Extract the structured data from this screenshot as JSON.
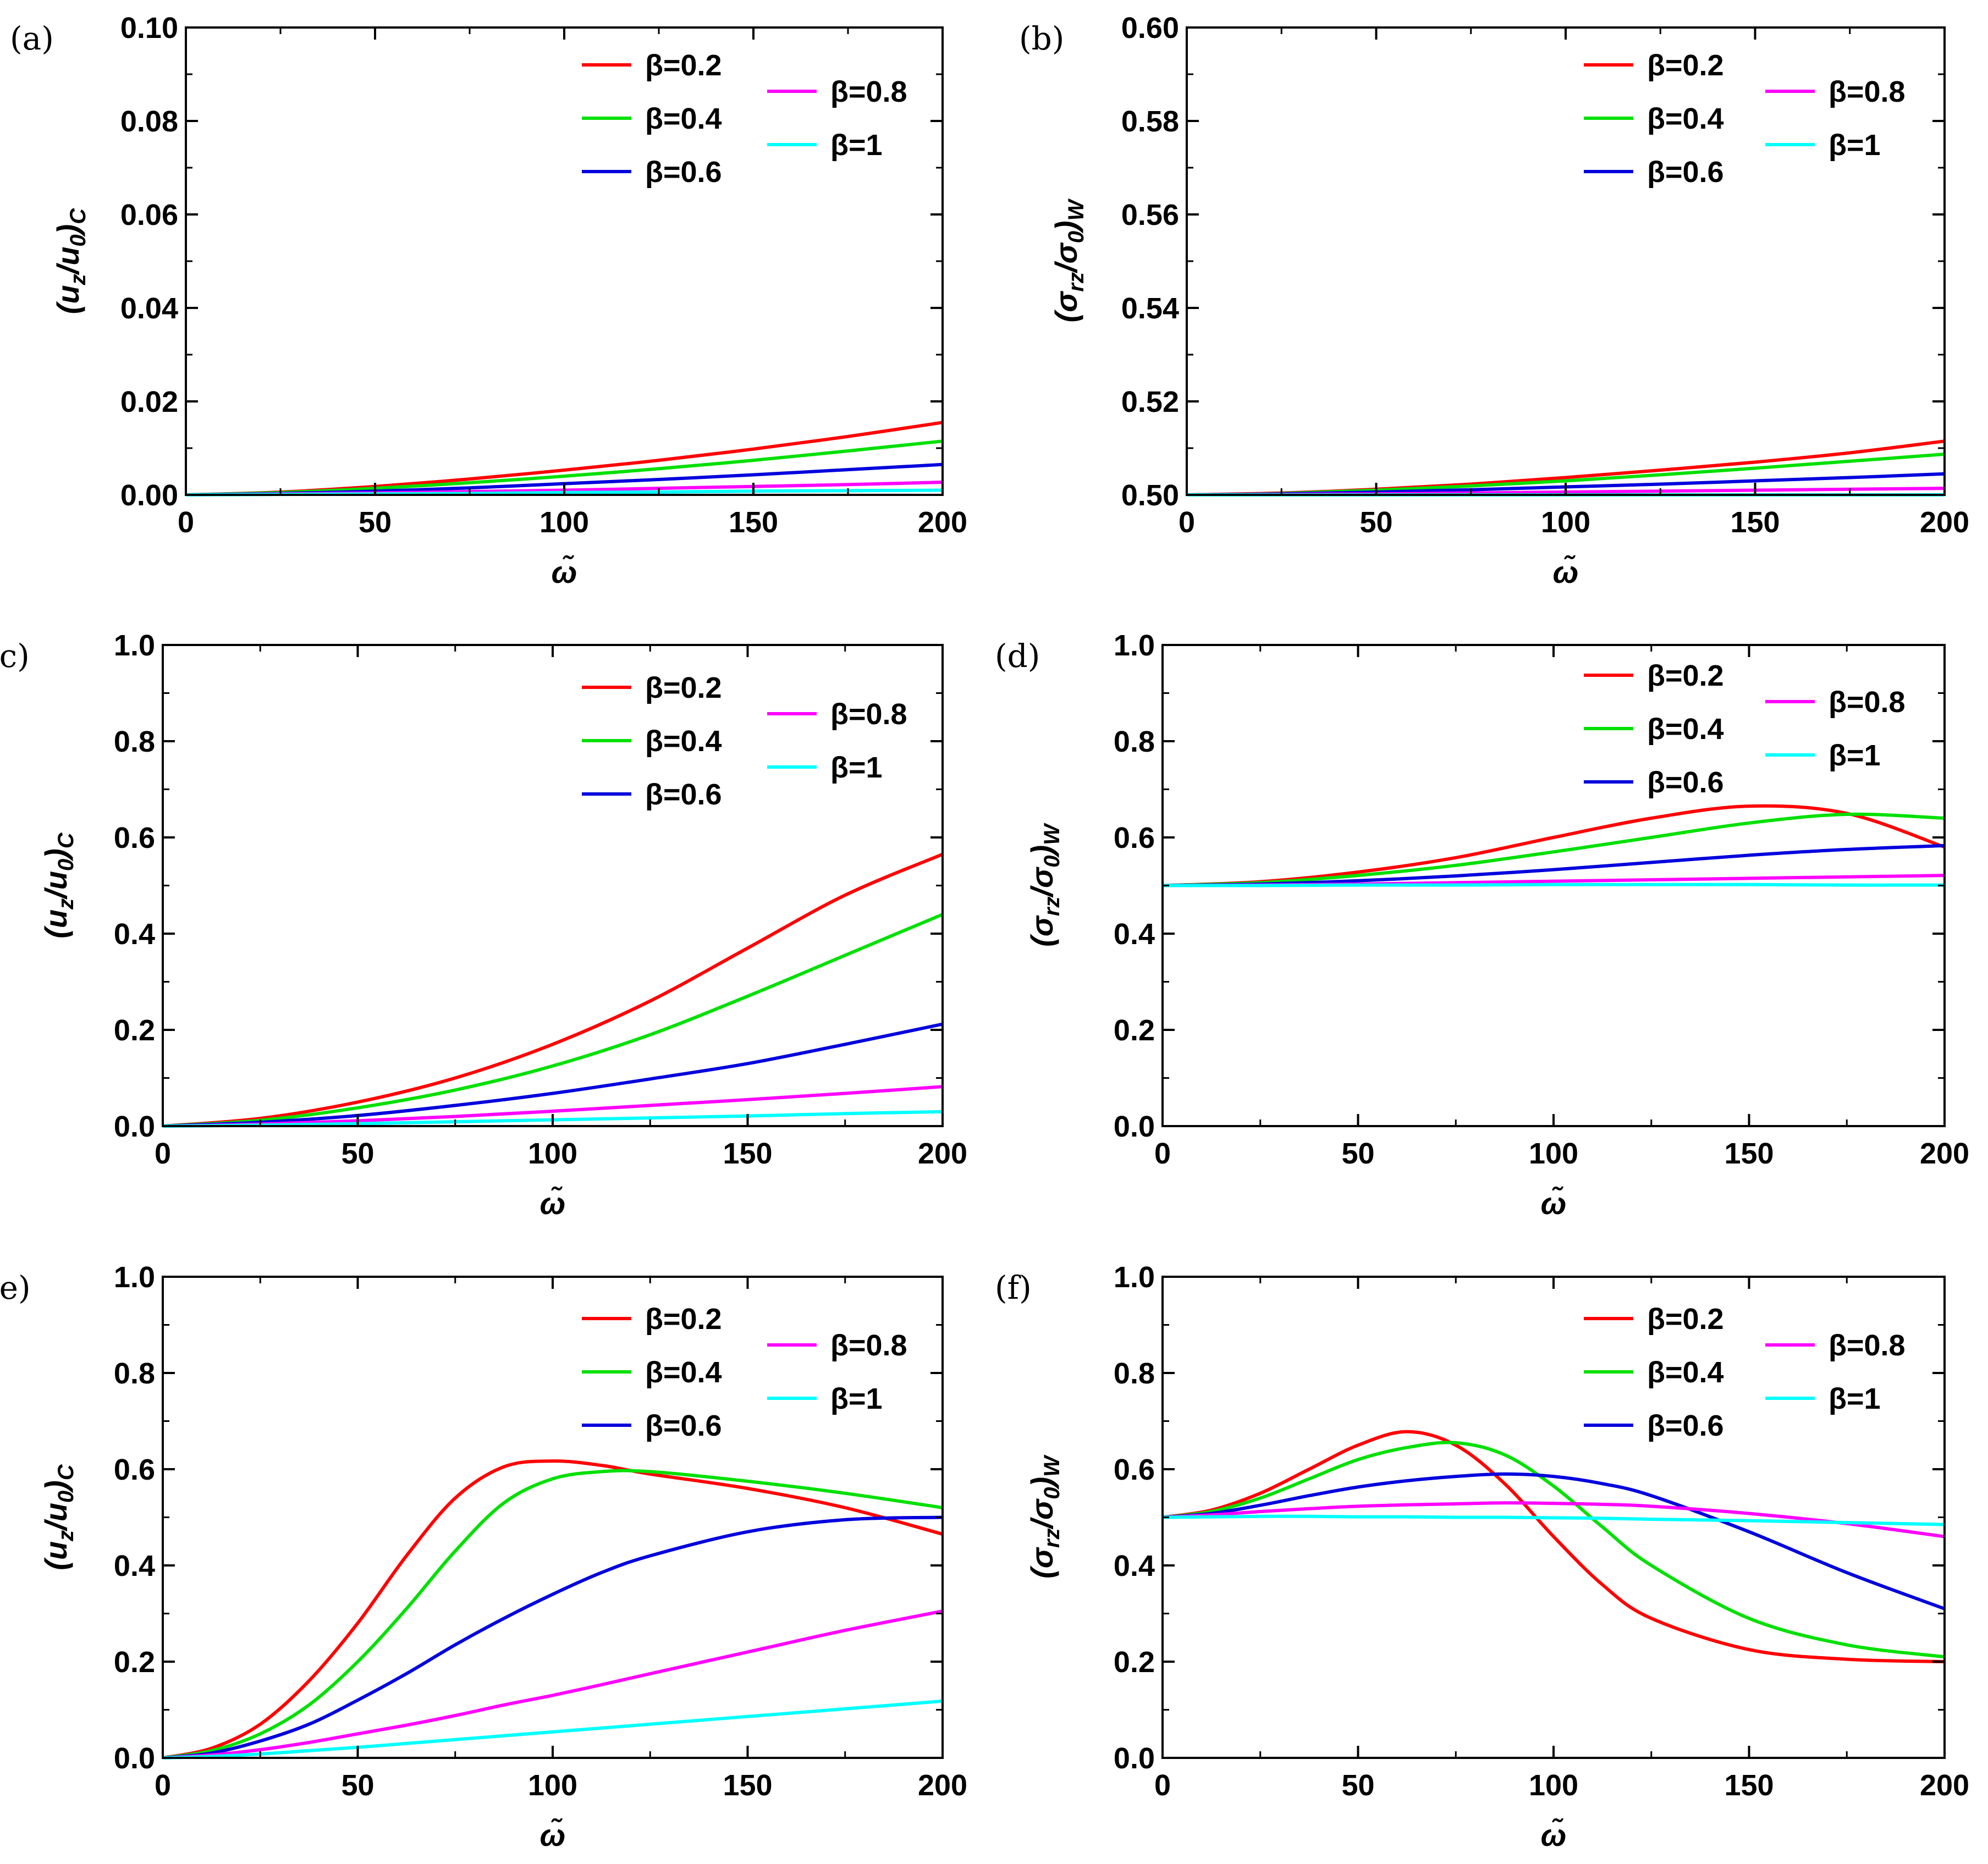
{
  "chart_data": [
    {
      "panel": "(a)",
      "type": "line",
      "xlabel": "ω̃",
      "ylabel": "(u_z/u_0)_C",
      "xlim": [
        0,
        200
      ],
      "ylim": [
        0,
        0.1
      ],
      "xticks": [
        "0",
        "50",
        "100",
        "150",
        "200"
      ],
      "yticks": [
        "0.00",
        "0.02",
        "0.04",
        "0.06",
        "0.08",
        "0.10"
      ],
      "legend": "top-right",
      "grid": false,
      "series": [
        {
          "name": "β=0.2",
          "color": "#ff0000",
          "x": [
            0,
            25,
            50,
            75,
            100,
            125,
            150,
            175,
            200
          ],
          "y": [
            0,
            0.0006,
            0.0018,
            0.0034,
            0.0053,
            0.0074,
            0.0098,
            0.0125,
            0.0155
          ]
        },
        {
          "name": "β=0.4",
          "color": "#00e000",
          "x": [
            0,
            25,
            50,
            75,
            100,
            125,
            150,
            175,
            200
          ],
          "y": [
            0,
            0.0005,
            0.0014,
            0.0026,
            0.004,
            0.0056,
            0.0074,
            0.0094,
            0.0115
          ]
        },
        {
          "name": "β=0.6",
          "color": "#0000dd",
          "x": [
            0,
            25,
            50,
            75,
            100,
            125,
            150,
            175,
            200
          ],
          "y": [
            0,
            0.0003,
            0.0008,
            0.0015,
            0.0024,
            0.0033,
            0.0043,
            0.0054,
            0.0065
          ]
        },
        {
          "name": "β=0.8",
          "color": "#ff00ff",
          "x": [
            0,
            25,
            50,
            75,
            100,
            125,
            150,
            175,
            200
          ],
          "y": [
            0,
            0.0002,
            0.0004,
            0.0007,
            0.001,
            0.0014,
            0.0018,
            0.0022,
            0.0027
          ]
        },
        {
          "name": "β=1",
          "color": "#00ffff",
          "x": [
            0,
            25,
            50,
            75,
            100,
            125,
            150,
            175,
            200
          ],
          "y": [
            0,
            0.0001,
            0.0002,
            0.0003,
            0.0005,
            0.0006,
            0.0008,
            0.0009,
            0.001
          ]
        }
      ]
    },
    {
      "panel": "(b)",
      "type": "line",
      "xlabel": "ω̃",
      "ylabel": "(σ_rz/σ_0)_W",
      "xlim": [
        0,
        200
      ],
      "ylim": [
        0.5,
        0.6
      ],
      "xticks": [
        "0",
        "50",
        "100",
        "150",
        "200"
      ],
      "yticks": [
        "0.50",
        "0.52",
        "0.54",
        "0.56",
        "0.58",
        "0.60"
      ],
      "legend": "top-right",
      "grid": false,
      "series": [
        {
          "name": "β=0.2",
          "color": "#ff0000",
          "x": [
            0,
            25,
            50,
            75,
            100,
            125,
            150,
            175,
            200
          ],
          "y": [
            0.5,
            0.5004,
            0.5012,
            0.5023,
            0.5037,
            0.5053,
            0.507,
            0.509,
            0.5115
          ]
        },
        {
          "name": "β=0.4",
          "color": "#00e000",
          "x": [
            0,
            25,
            50,
            75,
            100,
            125,
            150,
            175,
            200
          ],
          "y": [
            0.5,
            0.5003,
            0.501,
            0.5019,
            0.503,
            0.5043,
            0.5057,
            0.5072,
            0.5087
          ]
        },
        {
          "name": "β=0.6",
          "color": "#0000dd",
          "x": [
            0,
            25,
            50,
            75,
            100,
            125,
            150,
            175,
            200
          ],
          "y": [
            0.5,
            0.5002,
            0.5006,
            0.5011,
            0.5017,
            0.5023,
            0.503,
            0.5037,
            0.5045
          ]
        },
        {
          "name": "β=0.8",
          "color": "#ff00ff",
          "x": [
            0,
            25,
            50,
            75,
            100,
            125,
            150,
            175,
            200
          ],
          "y": [
            0.5,
            0.5001,
            0.5002,
            0.5004,
            0.5006,
            0.5008,
            0.501,
            0.5012,
            0.5014
          ]
        },
        {
          "name": "β=1",
          "color": "#00ffff",
          "x": [
            0,
            25,
            50,
            75,
            100,
            125,
            150,
            175,
            200
          ],
          "y": [
            0.5,
            0.5,
            0.5,
            0.5,
            0.5,
            0.5,
            0.5,
            0.5,
            0.5
          ]
        }
      ]
    },
    {
      "panel": "(c)",
      "type": "line",
      "xlabel": "ω̃",
      "ylabel": "(u_z/u_0)_C",
      "xlim": [
        0,
        200
      ],
      "ylim": [
        0,
        1
      ],
      "xticks": [
        "0",
        "50",
        "100",
        "150",
        "200"
      ],
      "yticks": [
        "0.0",
        "0.2",
        "0.4",
        "0.6",
        "0.8",
        "1.0"
      ],
      "legend": "top-right",
      "grid": false,
      "series": [
        {
          "name": "β=0.2",
          "color": "#ff0000",
          "x": [
            0,
            25,
            50,
            75,
            100,
            125,
            150,
            175,
            200
          ],
          "y": [
            0,
            0.016,
            0.05,
            0.1,
            0.17,
            0.26,
            0.37,
            0.48,
            0.565
          ]
        },
        {
          "name": "β=0.4",
          "color": "#00e000",
          "x": [
            0,
            25,
            50,
            75,
            100,
            125,
            150,
            175,
            200
          ],
          "y": [
            0,
            0.012,
            0.038,
            0.075,
            0.125,
            0.19,
            0.27,
            0.355,
            0.44
          ]
        },
        {
          "name": "β=0.6",
          "color": "#0000dd",
          "x": [
            0,
            25,
            50,
            75,
            100,
            125,
            150,
            175,
            200
          ],
          "y": [
            0,
            0.008,
            0.022,
            0.043,
            0.068,
            0.098,
            0.13,
            0.17,
            0.212
          ]
        },
        {
          "name": "β=0.8",
          "color": "#ff00ff",
          "x": [
            0,
            25,
            50,
            75,
            100,
            125,
            150,
            175,
            200
          ],
          "y": [
            0,
            0.004,
            0.011,
            0.02,
            0.031,
            0.043,
            0.055,
            0.068,
            0.082
          ]
        },
        {
          "name": "β=1",
          "color": "#00ffff",
          "x": [
            0,
            25,
            50,
            75,
            100,
            125,
            150,
            175,
            200
          ],
          "y": [
            0,
            0.002,
            0.005,
            0.009,
            0.013,
            0.017,
            0.021,
            0.026,
            0.03
          ]
        }
      ]
    },
    {
      "panel": "(d)",
      "type": "line",
      "xlabel": "ω̃",
      "ylabel": "(σ_rz/σ_0)_W",
      "xlim": [
        0,
        200
      ],
      "ylim": [
        0,
        1
      ],
      "xticks": [
        "0",
        "50",
        "100",
        "150",
        "200"
      ],
      "yticks": [
        "0.0",
        "0.2",
        "0.4",
        "0.6",
        "0.8",
        "1.0"
      ],
      "legend": "top-right",
      "grid": false,
      "series": [
        {
          "name": "β=0.2",
          "color": "#ff0000",
          "x": [
            0,
            25,
            50,
            75,
            100,
            125,
            150,
            175,
            200
          ],
          "y": [
            0.5,
            0.508,
            0.528,
            0.558,
            0.6,
            0.64,
            0.665,
            0.65,
            0.58
          ]
        },
        {
          "name": "β=0.4",
          "color": "#00e000",
          "x": [
            0,
            25,
            50,
            75,
            100,
            125,
            150,
            175,
            200
          ],
          "y": [
            0.5,
            0.506,
            0.521,
            0.542,
            0.57,
            0.6,
            0.63,
            0.648,
            0.64
          ]
        },
        {
          "name": "β=0.6",
          "color": "#0000dd",
          "x": [
            0,
            25,
            50,
            75,
            100,
            125,
            150,
            175,
            200
          ],
          "y": [
            0.5,
            0.503,
            0.51,
            0.52,
            0.533,
            0.548,
            0.563,
            0.575,
            0.583
          ]
        },
        {
          "name": "β=0.8",
          "color": "#ff00ff",
          "x": [
            0,
            25,
            50,
            75,
            100,
            125,
            150,
            175,
            200
          ],
          "y": [
            0.5,
            0.501,
            0.503,
            0.506,
            0.509,
            0.512,
            0.515,
            0.518,
            0.521
          ]
        },
        {
          "name": "β=1",
          "color": "#00ffff",
          "x": [
            0,
            25,
            50,
            75,
            100,
            125,
            150,
            175,
            200
          ],
          "y": [
            0.5,
            0.5,
            0.501,
            0.501,
            0.502,
            0.502,
            0.502,
            0.501,
            0.501
          ]
        }
      ]
    },
    {
      "panel": "(e)",
      "type": "line",
      "xlabel": "ω̃",
      "ylabel": "(u_z/u_0)_C",
      "xlim": [
        0,
        200
      ],
      "ylim": [
        0,
        1
      ],
      "xticks": [
        "0",
        "50",
        "100",
        "150",
        "200"
      ],
      "yticks": [
        "0.0",
        "0.2",
        "0.4",
        "0.6",
        "0.8",
        "1.0"
      ],
      "legend": "top-right",
      "grid": false,
      "series": [
        {
          "name": "β=0.2",
          "color": "#ff0000",
          "x": [
            0,
            12.5,
            25,
            37.5,
            50,
            62.5,
            75,
            87.5,
            100,
            112.5,
            125,
            150,
            175,
            200
          ],
          "y": [
            0,
            0.02,
            0.07,
            0.16,
            0.28,
            0.42,
            0.54,
            0.605,
            0.617,
            0.608,
            0.59,
            0.56,
            0.52,
            0.465
          ]
        },
        {
          "name": "β=0.4",
          "color": "#00e000",
          "x": [
            0,
            12.5,
            25,
            37.5,
            50,
            62.5,
            75,
            87.5,
            100,
            112.5,
            125,
            150,
            175,
            200
          ],
          "y": [
            0,
            0.015,
            0.05,
            0.11,
            0.2,
            0.31,
            0.43,
            0.53,
            0.58,
            0.595,
            0.595,
            0.575,
            0.55,
            0.52
          ]
        },
        {
          "name": "β=0.6",
          "color": "#0000dd",
          "x": [
            0,
            12.5,
            25,
            37.5,
            50,
            62.5,
            75,
            87.5,
            100,
            112.5,
            125,
            150,
            175,
            200
          ],
          "y": [
            0,
            0.01,
            0.035,
            0.07,
            0.12,
            0.175,
            0.235,
            0.29,
            0.34,
            0.385,
            0.42,
            0.47,
            0.495,
            0.5
          ]
        },
        {
          "name": "β=0.8",
          "color": "#ff00ff",
          "x": [
            0,
            12.5,
            25,
            37.5,
            50,
            62.5,
            75,
            87.5,
            100,
            112.5,
            125,
            150,
            175,
            200
          ],
          "y": [
            0,
            0.006,
            0.017,
            0.032,
            0.05,
            0.068,
            0.088,
            0.11,
            0.13,
            0.152,
            0.175,
            0.22,
            0.265,
            0.305
          ]
        },
        {
          "name": "β=1",
          "color": "#00ffff",
          "x": [
            0,
            12.5,
            25,
            37.5,
            50,
            62.5,
            75,
            87.5,
            100,
            112.5,
            125,
            150,
            175,
            200
          ],
          "y": [
            0,
            0.003,
            0.008,
            0.015,
            0.022,
            0.03,
            0.038,
            0.046,
            0.054,
            0.062,
            0.07,
            0.086,
            0.102,
            0.118
          ]
        }
      ]
    },
    {
      "panel": "(f)",
      "type": "line",
      "xlabel": "ω̃",
      "ylabel": "(σ_rz/σ_0)_W",
      "xlim": [
        0,
        200
      ],
      "ylim": [
        0,
        1
      ],
      "xticks": [
        "0",
        "50",
        "100",
        "150",
        "200"
      ],
      "yticks": [
        "0.0",
        "0.2",
        "0.4",
        "0.6",
        "0.8",
        "1.0"
      ],
      "legend": "top-right",
      "grid": false,
      "series": [
        {
          "name": "β=0.2",
          "color": "#ff0000",
          "x": [
            0,
            12.5,
            25,
            37.5,
            50,
            62.5,
            75,
            87.5,
            100,
            112.5,
            125,
            150,
            175,
            200
          ],
          "y": [
            0.5,
            0.515,
            0.55,
            0.6,
            0.65,
            0.678,
            0.65,
            0.57,
            0.46,
            0.36,
            0.29,
            0.225,
            0.205,
            0.2
          ]
        },
        {
          "name": "β=0.4",
          "color": "#00e000",
          "x": [
            0,
            12.5,
            25,
            37.5,
            50,
            62.5,
            75,
            87.5,
            100,
            112.5,
            125,
            150,
            175,
            200
          ],
          "y": [
            0.5,
            0.512,
            0.54,
            0.58,
            0.62,
            0.645,
            0.655,
            0.63,
            0.565,
            0.48,
            0.4,
            0.29,
            0.235,
            0.21
          ]
        },
        {
          "name": "β=0.6",
          "color": "#0000dd",
          "x": [
            0,
            12.5,
            25,
            37.5,
            50,
            62.5,
            75,
            87.5,
            100,
            112.5,
            125,
            150,
            175,
            200
          ],
          "y": [
            0.5,
            0.508,
            0.525,
            0.545,
            0.563,
            0.576,
            0.585,
            0.59,
            0.585,
            0.57,
            0.545,
            0.47,
            0.385,
            0.31
          ]
        },
        {
          "name": "β=0.8",
          "color": "#ff00ff",
          "x": [
            0,
            12.5,
            25,
            37.5,
            50,
            62.5,
            75,
            87.5,
            100,
            112.5,
            125,
            150,
            175,
            200
          ],
          "y": [
            0.5,
            0.505,
            0.512,
            0.518,
            0.523,
            0.526,
            0.528,
            0.53,
            0.529,
            0.527,
            0.523,
            0.508,
            0.487,
            0.46
          ]
        },
        {
          "name": "β=1",
          "color": "#00ffff",
          "x": [
            0,
            12.5,
            25,
            37.5,
            50,
            62.5,
            75,
            87.5,
            100,
            112.5,
            125,
            150,
            175,
            200
          ],
          "y": [
            0.5,
            0.501,
            0.502,
            0.502,
            0.501,
            0.501,
            0.5,
            0.5,
            0.499,
            0.498,
            0.496,
            0.493,
            0.489,
            0.485
          ]
        }
      ]
    }
  ]
}
